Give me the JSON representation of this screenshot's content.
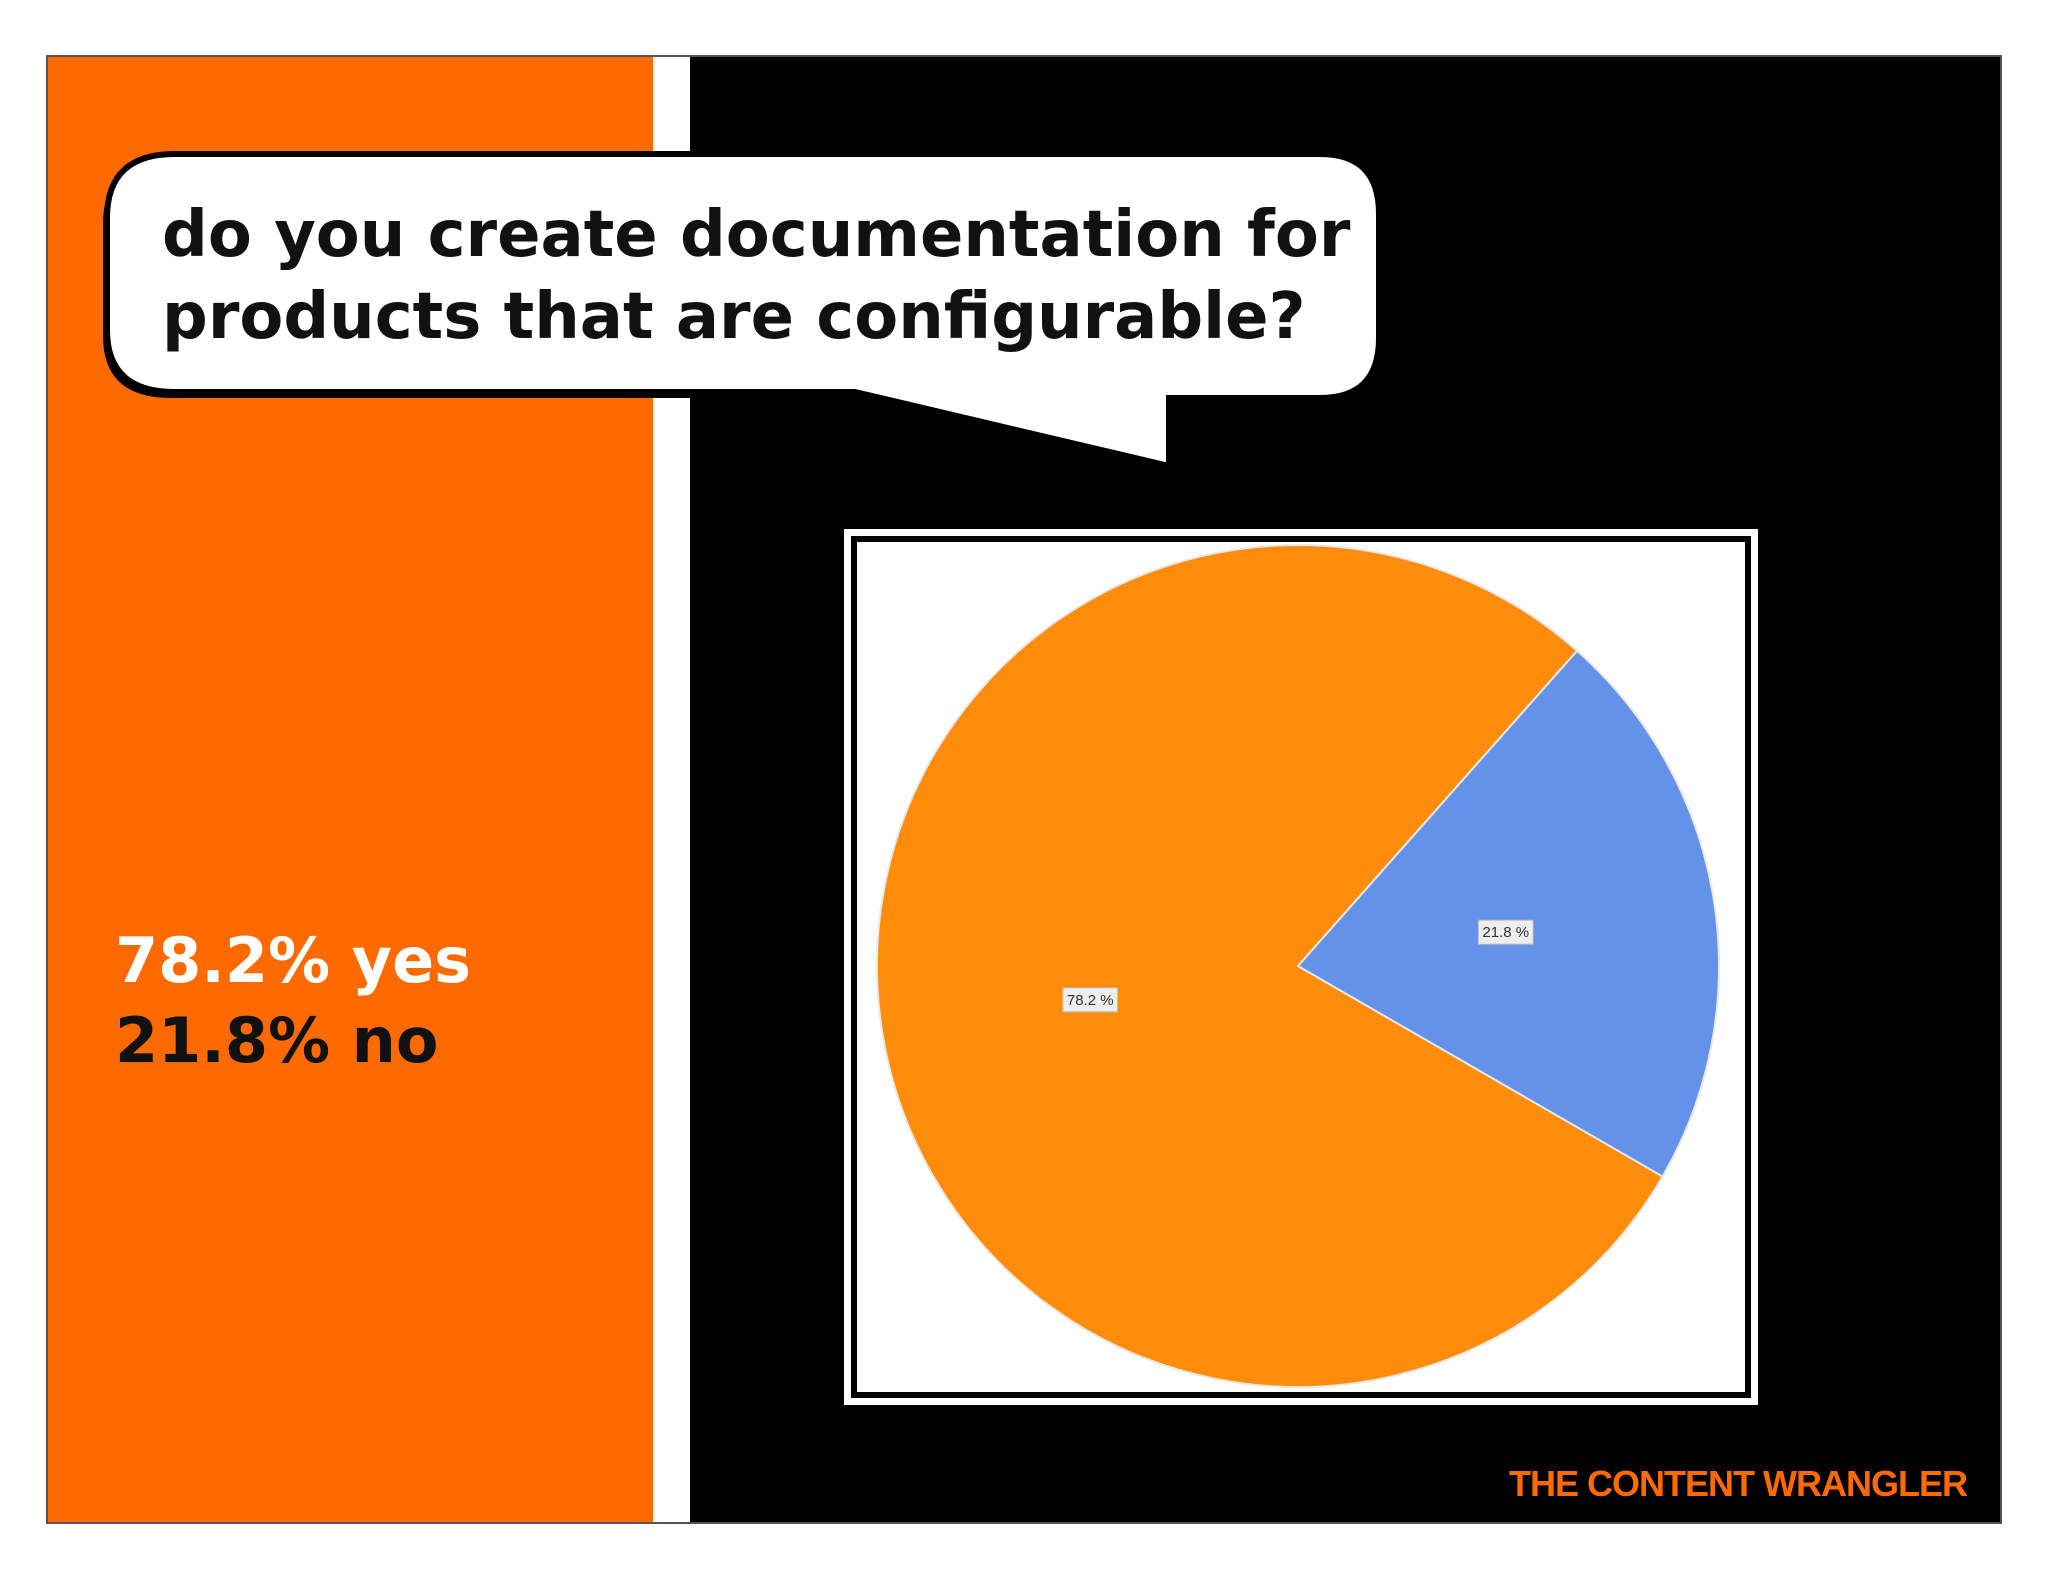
{
  "chart_data": {
    "type": "pie",
    "title": [
      "do you create documentation for",
      "products that are configurable?"
    ],
    "annotations": [
      "78.2% yes",
      "21.8% no"
    ],
    "values": [
      78.2,
      21.8
    ],
    "value_labels": [
      "78.2 %",
      "21.8 %"
    ],
    "colors": [
      "#ff8c0a",
      "#6492e8"
    ],
    "footer": "THE CONTENT WRANGLER"
  }
}
